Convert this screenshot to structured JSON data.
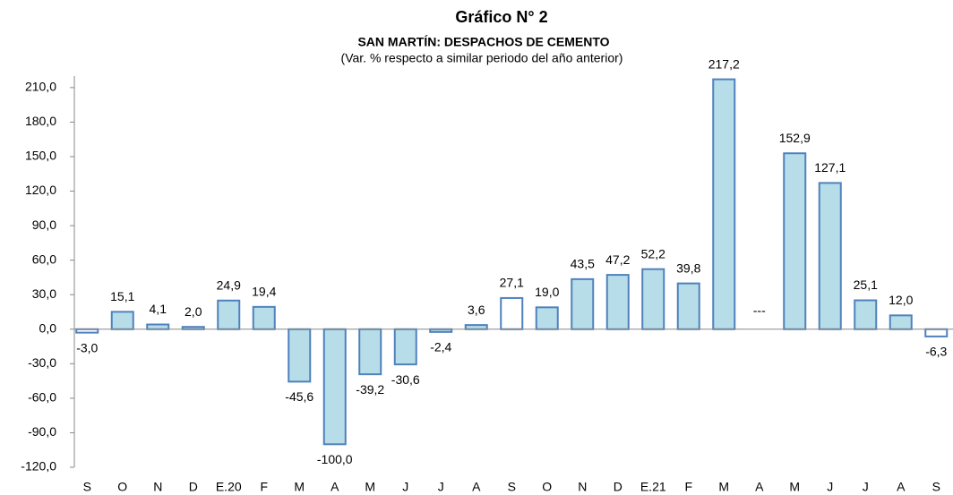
{
  "chart_data": {
    "type": "bar",
    "title": "Gráfico N° 2",
    "subtitle": "SAN MARTÍN: DESPACHOS DE CEMENTO",
    "note": "(Var. % respecto a similar periodo del año anterior)",
    "categories": [
      "S",
      "O",
      "N",
      "D",
      "E.20",
      "F",
      "M",
      "A",
      "M",
      "J",
      "J",
      "A",
      "S",
      "O",
      "N",
      "D",
      "E.21",
      "F",
      "M",
      "A",
      "M",
      "J",
      "J",
      "A",
      "S"
    ],
    "values": [
      -3.0,
      15.1,
      4.1,
      2.0,
      24.9,
      19.4,
      -45.6,
      -100.0,
      -39.2,
      -30.6,
      -2.4,
      3.6,
      27.1,
      19.0,
      43.5,
      47.2,
      52.2,
      39.8,
      217.2,
      null,
      152.9,
      127.1,
      25.1,
      12.0,
      -6.3
    ],
    "value_labels": [
      "-3,0",
      "15,1",
      "4,1",
      "2,0",
      "24,9",
      "19,4",
      "-45,6",
      "-100,0",
      "-39,2",
      "-30,6",
      "-2,4",
      "3,6",
      "27,1",
      "19,0",
      "43,5",
      "47,2",
      "52,2",
      "39,8",
      "217,2",
      "---",
      "152,9",
      "127,1",
      "25,1",
      "12,0",
      "-6,3"
    ],
    "colors": [
      "#ffffff",
      "#b7dee8",
      "#b7dee8",
      "#b7dee8",
      "#b7dee8",
      "#b7dee8",
      "#b7dee8",
      "#b7dee8",
      "#b7dee8",
      "#b7dee8",
      "#b7dee8",
      "#b7dee8",
      "#ffffff",
      "#b7dee8",
      "#b7dee8",
      "#b7dee8",
      "#b7dee8",
      "#b7dee8",
      "#b7dee8",
      "#b7dee8",
      "#b7dee8",
      "#b7dee8",
      "#b7dee8",
      "#b7dee8",
      "#ffffff"
    ],
    "edge_color": "#4f81bd",
    "ylim": [
      -120,
      220
    ],
    "yticks": [
      {
        "value": -120,
        "label": "-120,0"
      },
      {
        "value": -90,
        "label": "-90,0"
      },
      {
        "value": -60,
        "label": "-60,0"
      },
      {
        "value": -30,
        "label": "-30,0"
      },
      {
        "value": 0,
        "label": "0,0"
      },
      {
        "value": 30,
        "label": "30,0"
      },
      {
        "value": 60,
        "label": "60,0"
      },
      {
        "value": 90,
        "label": "90,0"
      },
      {
        "value": 120,
        "label": "120,0"
      },
      {
        "value": 150,
        "label": "150,0"
      },
      {
        "value": 180,
        "label": "180,0"
      },
      {
        "value": 210,
        "label": "210,0"
      }
    ],
    "grid": false
  }
}
